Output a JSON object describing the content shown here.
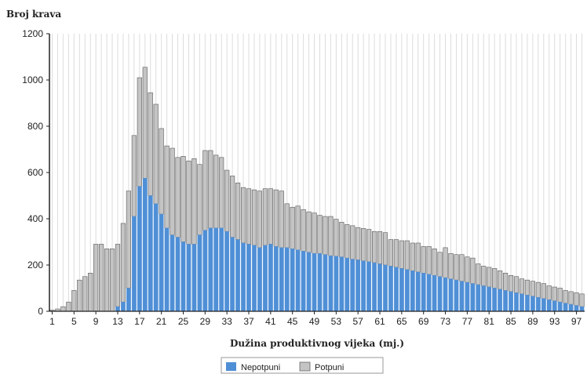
{
  "chart_data": {
    "type": "bar",
    "title": "Broj krava",
    "xlabel": "Dužina produktivnog vijeka (mj.)",
    "ylabel": "",
    "ylim": [
      0,
      1200
    ],
    "yticks": [
      0,
      200,
      400,
      600,
      800,
      1000,
      1200
    ],
    "xticks": [
      1,
      5,
      9,
      13,
      17,
      21,
      25,
      29,
      33,
      37,
      41,
      45,
      49,
      53,
      57,
      61,
      65,
      69,
      73,
      77,
      81,
      85,
      89,
      93,
      97
    ],
    "stacked": true,
    "grid": "vertical",
    "legend_position": "bottom",
    "x": [
      1,
      2,
      3,
      4,
      5,
      6,
      7,
      8,
      9,
      10,
      11,
      12,
      13,
      14,
      15,
      16,
      17,
      18,
      19,
      20,
      21,
      22,
      23,
      24,
      25,
      26,
      27,
      28,
      29,
      30,
      31,
      32,
      33,
      34,
      35,
      36,
      37,
      38,
      39,
      40,
      41,
      42,
      43,
      44,
      45,
      46,
      47,
      48,
      49,
      50,
      51,
      52,
      53,
      54,
      55,
      56,
      57,
      58,
      59,
      60,
      61,
      62,
      63,
      64,
      65,
      66,
      67,
      68,
      69,
      70,
      71,
      72,
      73,
      74,
      75,
      76,
      77,
      78,
      79,
      80,
      81,
      82,
      83,
      84,
      85,
      86,
      87,
      88,
      89,
      90,
      91,
      92,
      93,
      94,
      95,
      96,
      97,
      98
    ],
    "series": [
      {
        "name": "Nepotpuni",
        "color": "#4f8fd6",
        "values": [
          0,
          0,
          0,
          0,
          0,
          0,
          0,
          0,
          0,
          0,
          0,
          0,
          20,
          40,
          100,
          410,
          540,
          575,
          500,
          465,
          420,
          360,
          330,
          320,
          300,
          290,
          290,
          330,
          350,
          360,
          360,
          360,
          345,
          320,
          310,
          295,
          290,
          285,
          275,
          285,
          290,
          280,
          275,
          275,
          270,
          265,
          260,
          255,
          250,
          250,
          245,
          240,
          238,
          235,
          230,
          225,
          222,
          218,
          214,
          210,
          205,
          200,
          195,
          190,
          185,
          180,
          175,
          170,
          165,
          160,
          155,
          150,
          145,
          140,
          135,
          130,
          125,
          120,
          115,
          110,
          105,
          100,
          95,
          90,
          85,
          80,
          75,
          70,
          65,
          60,
          55,
          50,
          45,
          40,
          35,
          30,
          25,
          20
        ]
      },
      {
        "name": "Potpuni",
        "color": "#c4c4c4",
        "values": [
          5,
          10,
          20,
          40,
          90,
          135,
          150,
          165,
          290,
          290,
          270,
          270,
          270,
          340,
          420,
          350,
          470,
          480,
          445,
          430,
          370,
          355,
          375,
          345,
          370,
          360,
          370,
          305,
          345,
          335,
          315,
          305,
          265,
          265,
          245,
          240,
          240,
          240,
          245,
          245,
          240,
          245,
          245,
          190,
          180,
          190,
          180,
          175,
          175,
          165,
          165,
          170,
          160,
          150,
          145,
          145,
          140,
          140,
          140,
          135,
          140,
          140,
          115,
          120,
          120,
          125,
          120,
          125,
          115,
          120,
          115,
          105,
          130,
          110,
          110,
          115,
          110,
          110,
          90,
          85,
          85,
          85,
          80,
          75,
          70,
          70,
          65,
          65,
          65,
          65,
          65,
          60,
          60,
          60,
          55,
          55,
          55,
          55
        ]
      }
    ]
  }
}
